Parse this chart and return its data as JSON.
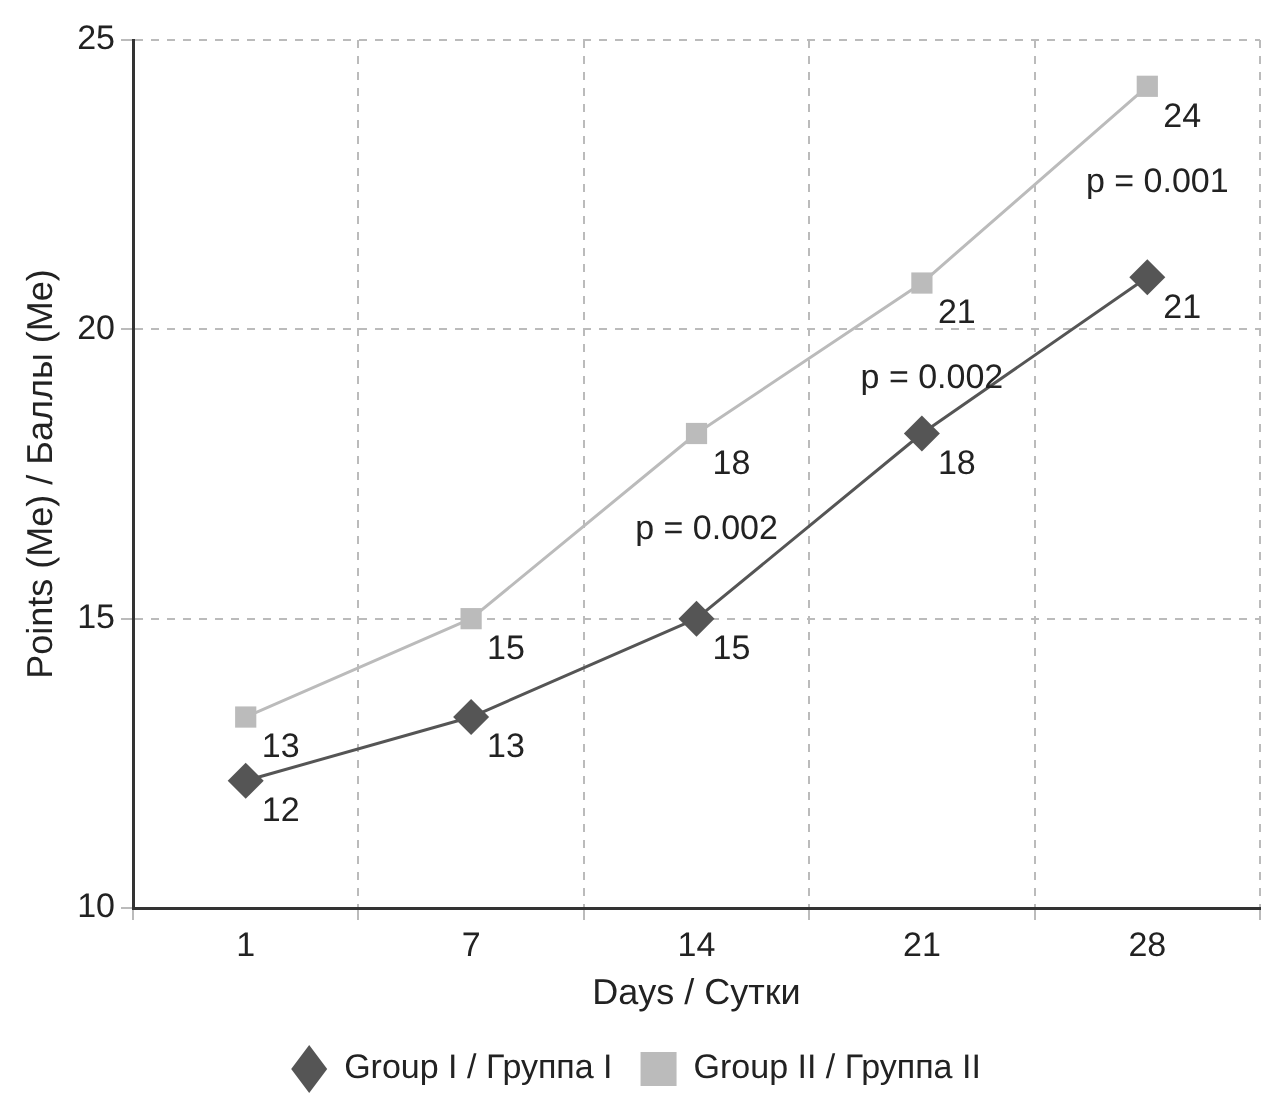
{
  "chart_data": {
    "type": "line",
    "xlabel": "Days / Сутки",
    "ylabel": "Points (Me) / Баллы (Me)",
    "categories": [
      "1",
      "7",
      "14",
      "21",
      "28"
    ],
    "series": [
      {
        "name": "Group I / Группа I",
        "color": "#555555",
        "marker": "diamond",
        "values": [
          12.2,
          13.3,
          15.0,
          18.2,
          20.9
        ],
        "value_labels": [
          "12",
          "13",
          "15",
          "18",
          "21"
        ]
      },
      {
        "name": "Group II / Группа II",
        "color": "#bbbbbb",
        "marker": "square",
        "values": [
          13.3,
          15.0,
          18.2,
          20.8,
          24.2
        ],
        "value_labels": [
          "13",
          "15",
          "18",
          "21",
          "24"
        ]
      }
    ],
    "ylim": [
      10,
      25
    ],
    "yticks": [
      10,
      15,
      20,
      25
    ],
    "grid": true,
    "legend": "bottom",
    "annotations": [
      "p = 0.002",
      "p = 0.002",
      "p = 0.001"
    ]
  }
}
